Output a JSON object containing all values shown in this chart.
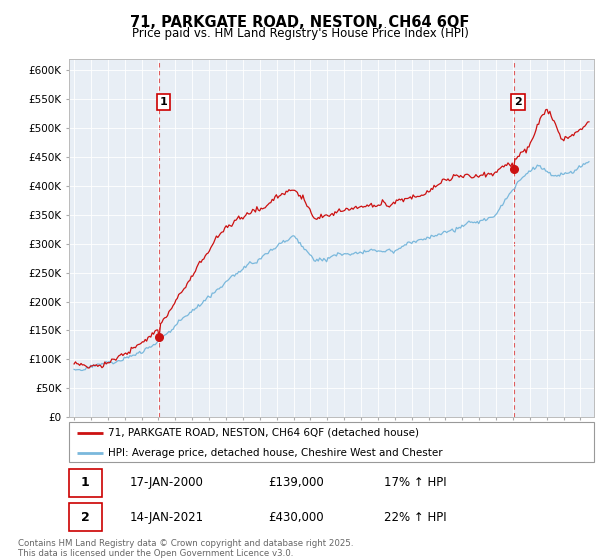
{
  "title": "71, PARKGATE ROAD, NESTON, CH64 6QF",
  "subtitle": "Price paid vs. HM Land Registry's House Price Index (HPI)",
  "ylabel_ticks": [
    "£0",
    "£50K",
    "£100K",
    "£150K",
    "£200K",
    "£250K",
    "£300K",
    "£350K",
    "£400K",
    "£450K",
    "£500K",
    "£550K",
    "£600K"
  ],
  "ytick_values": [
    0,
    50000,
    100000,
    150000,
    200000,
    250000,
    300000,
    350000,
    400000,
    450000,
    500000,
    550000,
    600000
  ],
  "ylim": [
    0,
    620000
  ],
  "xlim_start": 1994.7,
  "xlim_end": 2025.8,
  "sale1": {
    "year": 2000.04,
    "price": 139000,
    "label": "1"
  },
  "sale2": {
    "year": 2021.04,
    "price": 430000,
    "label": "2"
  },
  "hpi_color": "#7ab8dc",
  "price_color": "#cc1111",
  "dashed_color": "#dd4444",
  "legend_entry1": "71, PARKGATE ROAD, NESTON, CH64 6QF (detached house)",
  "legend_entry2": "HPI: Average price, detached house, Cheshire West and Chester",
  "annotation1_date": "17-JAN-2000",
  "annotation1_price": "£139,000",
  "annotation1_hpi": "17% ↑ HPI",
  "annotation2_date": "14-JAN-2021",
  "annotation2_price": "£430,000",
  "annotation2_hpi": "22% ↑ HPI",
  "footer": "Contains HM Land Registry data © Crown copyright and database right 2025.\nThis data is licensed under the Open Government Licence v3.0.",
  "background_color": "#ffffff",
  "plot_bg_color": "#e8eef5",
  "grid_color": "#ffffff"
}
